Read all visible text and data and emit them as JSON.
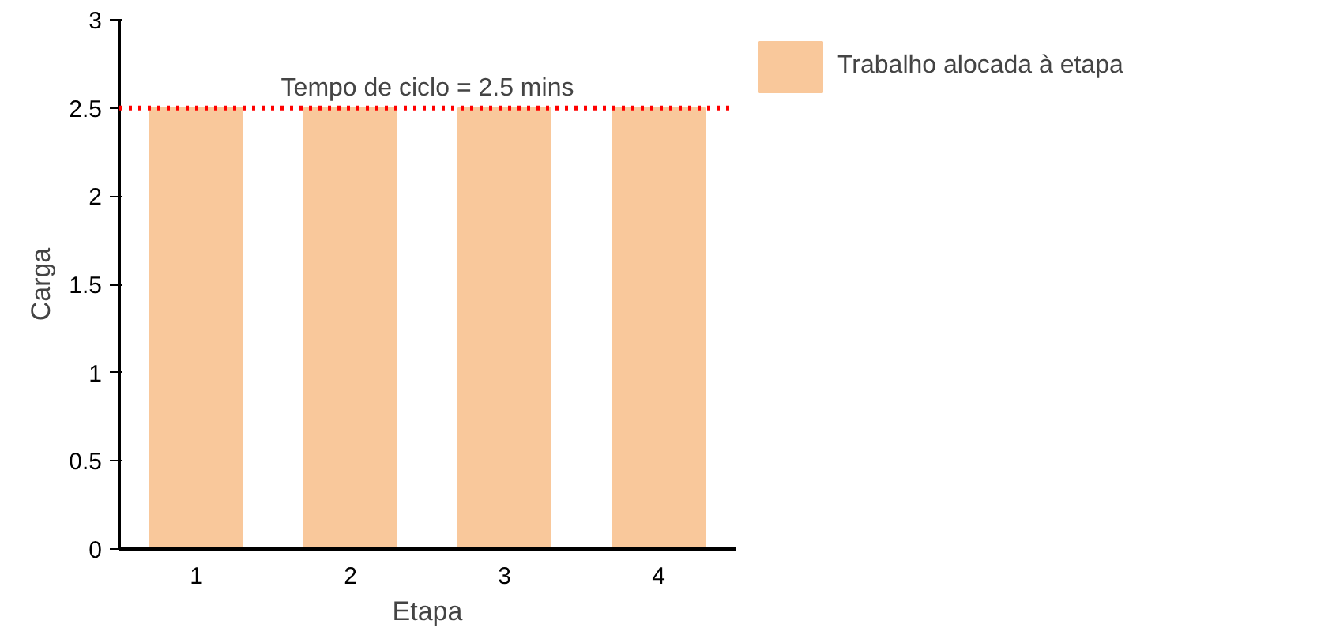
{
  "chart_data": {
    "type": "bar",
    "xlabel": "Etapa",
    "ylabel": "Carga",
    "categories": [
      "1",
      "2",
      "3",
      "4"
    ],
    "series": [
      {
        "name": "Trabalho alocada à etapa",
        "color": "#f9c89b",
        "values": [
          2.5,
          2.5,
          2.5,
          2.5
        ]
      }
    ],
    "ylim": [
      0,
      3
    ],
    "yticks": [
      0,
      0.5,
      1,
      1.5,
      2,
      2.5,
      3
    ],
    "ref_lines": [
      {
        "axis": "y",
        "value": 2.5,
        "label": "Tempo de ciclo = 2.5 mins",
        "color": "#ff0000",
        "line_style": "dotted"
      }
    ],
    "legend": "right",
    "grid": false
  }
}
